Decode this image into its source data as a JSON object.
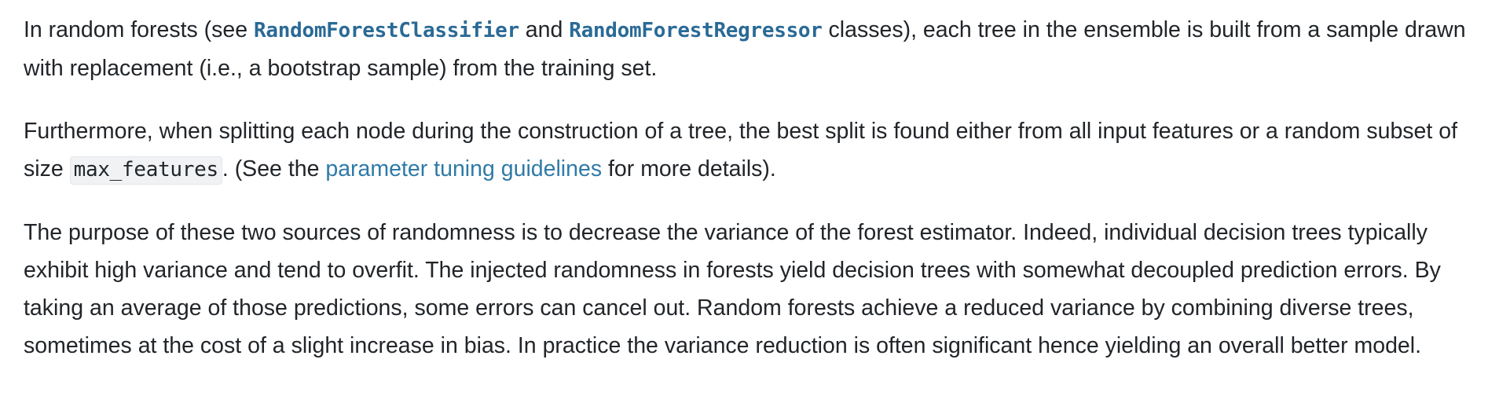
{
  "paragraphs": {
    "p1": {
      "t1": "In random forests (see ",
      "link1": "RandomForestClassifier",
      "t2": " and ",
      "link2": "RandomForestRegressor",
      "t3": " classes), each tree in the ensemble is built from a sample drawn with replacement (i.e., a bootstrap sample) from the training set."
    },
    "p2": {
      "t1": "Furthermore, when splitting each node during the construction of a tree, the best split is found either from all input features or a random subset of size ",
      "code1": "max_features",
      "t2": ". (See the ",
      "link1": "parameter tuning guidelines",
      "t3": " for more details)."
    },
    "p3": {
      "text": "The purpose of these two sources of randomness is to decrease the variance of the forest estimator. Indeed, individual decision trees typically exhibit high variance and tend to overfit. The injected randomness in forests yield decision trees with somewhat decoupled prediction errors. By taking an average of those predictions, some errors can cancel out. Random forests achieve a reduced variance by combining diverse trees, sometimes at the cost of a slight increase in bias. In practice the variance reduction is often significant hence yielding an overall better model."
    }
  },
  "colors": {
    "text": "#212529",
    "code_link": "#2a6a96",
    "text_link": "#2f7aa8",
    "code_background": "#f0f2f4"
  }
}
